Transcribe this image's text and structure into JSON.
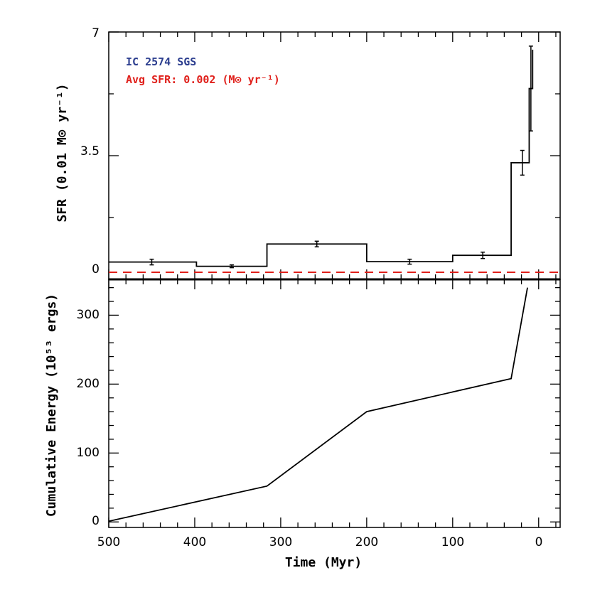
{
  "chart_data": [
    {
      "type": "line",
      "panel": "top",
      "ylabel": "SFR (0.01 M⊙ yr⁻¹)",
      "ylim": [
        0,
        7
      ],
      "xlim": [
        500,
        -25
      ],
      "yticks": [
        0,
        3.5,
        7
      ],
      "ytick_labels": [
        "0",
        "3.5",
        "7"
      ],
      "legend": {
        "title": "IC 2574 SGS",
        "avg_label": "Avg SFR: 0.002 (M⊙ yr⁻¹)",
        "title_color": "#2c3e8f",
        "avg_color": "#e0201b"
      },
      "steps": [
        {
          "x0": 500,
          "x1": 398,
          "y": 0.49
        },
        {
          "x0": 398,
          "x1": 316,
          "y": 0.37
        },
        {
          "x0": 316,
          "x1": 200,
          "y": 1.0
        },
        {
          "x0": 200,
          "x1": 100,
          "y": 0.5
        },
        {
          "x0": 100,
          "x1": 32,
          "y": 0.68
        },
        {
          "x0": 32,
          "x1": 20,
          "y": 3.3
        },
        {
          "x0": 20,
          "x1": 11,
          "y": 3.3
        },
        {
          "x0": 11,
          "x1": 7,
          "y": 5.4
        }
      ],
      "errorbars": [
        {
          "x": 450,
          "y": 0.49,
          "err": 0.08
        },
        {
          "x": 357,
          "y": 0.37,
          "err": 0.04
        },
        {
          "x": 258,
          "y": 1.0,
          "err": 0.08
        },
        {
          "x": 150,
          "y": 0.5,
          "err": 0.07
        },
        {
          "x": 65,
          "y": 0.68,
          "err": 0.09
        },
        {
          "x": 19,
          "y": 3.3,
          "err": 0.35
        },
        {
          "x": 9,
          "y": 5.4,
          "err": 1.2
        }
      ],
      "avg_line": {
        "y": 0.2,
        "color": "#e0201b",
        "style": "dashed"
      }
    },
    {
      "type": "line",
      "panel": "bottom",
      "xlabel": "Time (Myr)",
      "ylabel": "Cumulative Energy (10⁵³ ergs)",
      "xlim": [
        500,
        -25
      ],
      "ylim": [
        -8,
        352
      ],
      "xticks": [
        500,
        400,
        300,
        200,
        100,
        0
      ],
      "xtick_labels": [
        "500",
        "400",
        "300",
        "200",
        "100",
        "0"
      ],
      "yticks": [
        0,
        100,
        200,
        300
      ],
      "ytick_labels": [
        "0",
        "100",
        "200",
        "300"
      ],
      "x": [
        500,
        316,
        200,
        32,
        13
      ],
      "y": [
        1,
        52,
        160,
        208,
        340
      ]
    }
  ]
}
